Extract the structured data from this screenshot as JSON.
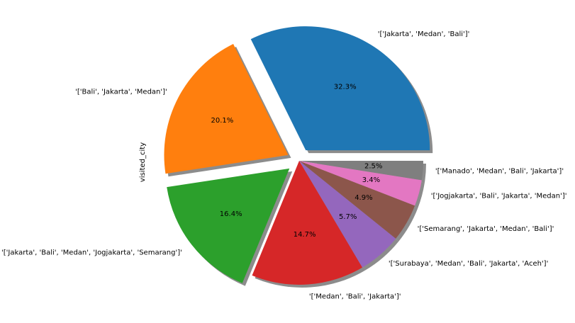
{
  "chart_data": {
    "type": "pie",
    "ylabel": "visited_city",
    "legend": "none",
    "shadow": true,
    "slices": [
      {
        "label": "'['Jakarta', 'Medan', 'Bali']'",
        "value": 32.3,
        "pct_text": "32.3%",
        "color": "#1f77b4",
        "exploded": true
      },
      {
        "label": "'['Bali', 'Jakarta', 'Medan']'",
        "value": 20.1,
        "pct_text": "20.1%",
        "color": "#ff7f0e",
        "exploded": true
      },
      {
        "label": "'['Jakarta', 'Bali', 'Medan', 'Jogjakarta', 'Semarang']'",
        "value": 16.4,
        "pct_text": "16.4%",
        "color": "#2ca02c",
        "exploded": true
      },
      {
        "label": "'['Medan', 'Bali', 'Jakarta']'",
        "value": 14.7,
        "pct_text": "14.7%",
        "color": "#d62728",
        "exploded": false
      },
      {
        "label": "'['Surabaya', 'Medan', 'Bali', 'Jakarta', 'Aceh']'",
        "value": 5.7,
        "pct_text": "5.7%",
        "color": "#9467bd",
        "exploded": false
      },
      {
        "label": "'['Semarang', 'Jakarta', 'Medan', 'Bali']'",
        "value": 4.9,
        "pct_text": "4.9%",
        "color": "#8c564b",
        "exploded": false
      },
      {
        "label": "'['Jogjakarta', 'Bali', 'Jakarta', 'Medan']'",
        "value": 3.4,
        "pct_text": "3.4%",
        "color": "#e377c2",
        "exploded": false
      },
      {
        "label": "'['Manado', 'Medan', 'Bali', 'Jakarta']'",
        "value": 2.5,
        "pct_text": "2.5%",
        "color": "#7f7f7f",
        "exploded": false
      }
    ]
  }
}
